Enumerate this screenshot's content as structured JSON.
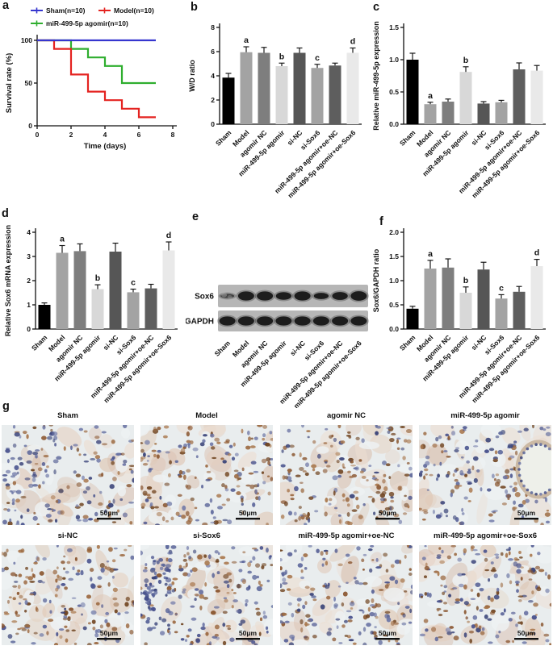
{
  "panel_labels": {
    "a": "a",
    "b": "b",
    "c": "c",
    "d": "d",
    "e": "e",
    "f": "f",
    "g": "g"
  },
  "categories": [
    "Sham",
    "Model",
    "agomir NC",
    "miR-499-5p agomir",
    "si-NC",
    "si-Sox6",
    "miR-499-5p agomir+oe-NC",
    "miR-499-5p agomir+oe-Sox6"
  ],
  "bar_colors": [
    "#000000",
    "#a3a3a3",
    "#7e7e7e",
    "#d8d8d8",
    "#565656",
    "#a3a3a3",
    "#5e5e5e",
    "#e9e9e9"
  ],
  "chart_data": [
    {
      "panel": "a",
      "type": "line",
      "subtype": "survival-step",
      "xlabel": "Time (days)",
      "ylabel": "Survival rate (%)",
      "xlim": [
        0,
        8
      ],
      "ylim": [
        0,
        100
      ],
      "xticks": [
        "0",
        "2",
        "4",
        "6",
        "8"
      ],
      "yticks": [
        "0",
        "50",
        "100"
      ],
      "legend_position": "top",
      "series": [
        {
          "name": "Sham(n=10)",
          "color": "#3636cf",
          "steps": [
            [
              0,
              100
            ],
            [
              7,
              100
            ]
          ]
        },
        {
          "name": "Model(n=10)",
          "color": "#e42320",
          "steps": [
            [
              0,
              100
            ],
            [
              1,
              100
            ],
            [
              1,
              90
            ],
            [
              2,
              90
            ],
            [
              2,
              60
            ],
            [
              3,
              60
            ],
            [
              3,
              40
            ],
            [
              4,
              40
            ],
            [
              4,
              30
            ],
            [
              5,
              30
            ],
            [
              5,
              20
            ],
            [
              6,
              20
            ],
            [
              6,
              10
            ],
            [
              7,
              10
            ]
          ]
        },
        {
          "name": "miR-499-5p agomir(n=10)",
          "color": "#2fae2f",
          "steps": [
            [
              0,
              100
            ],
            [
              2,
              100
            ],
            [
              2,
              90
            ],
            [
              3,
              90
            ],
            [
              3,
              80
            ],
            [
              4,
              80
            ],
            [
              4,
              70
            ],
            [
              5,
              70
            ],
            [
              5,
              50
            ],
            [
              7,
              50
            ]
          ]
        }
      ]
    },
    {
      "panel": "b",
      "type": "bar",
      "ylabel": "W/D ratio",
      "ylim": [
        0,
        8
      ],
      "yticks": [
        0,
        2,
        4,
        6,
        8
      ],
      "ytick_labels": [
        "0",
        "2",
        "4",
        "6",
        "8"
      ],
      "values": [
        3.85,
        5.95,
        5.9,
        4.8,
        5.9,
        4.65,
        4.85,
        5.9
      ],
      "errors": [
        0.35,
        0.45,
        0.45,
        0.25,
        0.4,
        0.3,
        0.2,
        0.4
      ],
      "letters": [
        "",
        "a",
        "",
        "b",
        "",
        "c",
        "",
        "d"
      ]
    },
    {
      "panel": "c",
      "type": "bar",
      "ylabel": "Relative miR-499-5p expression",
      "ylim": [
        0,
        1.5
      ],
      "yticks": [
        0,
        0.5,
        1,
        1.5
      ],
      "ytick_labels": [
        "0.0",
        "0.5",
        "1.0",
        "1.5"
      ],
      "values": [
        1.0,
        0.31,
        0.35,
        0.81,
        0.32,
        0.34,
        0.85,
        0.83
      ],
      "errors": [
        0.1,
        0.03,
        0.04,
        0.08,
        0.03,
        0.03,
        0.1,
        0.08
      ],
      "letters": [
        "",
        "a",
        "",
        "b",
        "",
        "",
        "",
        ""
      ]
    },
    {
      "panel": "d",
      "type": "bar",
      "ylabel": "Relative Sox6 mRNA expression",
      "ylim": [
        0,
        4
      ],
      "yticks": [
        0,
        1,
        2,
        3,
        4
      ],
      "ytick_labels": [
        "0",
        "1",
        "2",
        "3",
        "4"
      ],
      "values": [
        1.0,
        3.15,
        3.22,
        1.65,
        3.2,
        1.52,
        1.68,
        3.25
      ],
      "errors": [
        0.08,
        0.3,
        0.3,
        0.18,
        0.35,
        0.13,
        0.17,
        0.35
      ],
      "letters": [
        "",
        "a",
        "",
        "b",
        "",
        "c",
        "",
        "d"
      ]
    },
    {
      "panel": "f",
      "type": "bar",
      "ylabel": "Sox6/GAPDH ratio",
      "ylim": [
        0,
        2
      ],
      "yticks": [
        0,
        0.5,
        1,
        1.5,
        2
      ],
      "ytick_labels": [
        "0.0",
        "0.5",
        "1.0",
        "1.5",
        "2.0"
      ],
      "values": [
        0.42,
        1.25,
        1.27,
        0.75,
        1.23,
        0.63,
        0.77,
        1.3
      ],
      "errors": [
        0.05,
        0.17,
        0.18,
        0.12,
        0.15,
        0.08,
        0.11,
        0.14
      ],
      "letters": [
        "",
        "a",
        "",
        "b",
        "",
        "c",
        "",
        "d"
      ]
    }
  ],
  "panel_e": {
    "blots": [
      {
        "name": "Sox6",
        "intensities": [
          0.45,
          1,
          1,
          0.85,
          1,
          0.7,
          0.88,
          1.05
        ]
      },
      {
        "name": "GAPDH",
        "intensities": [
          1,
          1,
          1,
          1,
          1,
          1,
          1,
          1
        ]
      }
    ]
  },
  "panel_g": {
    "scale_label": "50μm",
    "images": [
      {
        "label": "Sham",
        "stain": "weak"
      },
      {
        "label": "Model",
        "stain": "strong"
      },
      {
        "label": "agomir NC",
        "stain": "strong"
      },
      {
        "label": "miR-499-5p agomir",
        "stain": "weak",
        "feature": "bronchiole"
      },
      {
        "label": "si-NC",
        "stain": "strong"
      },
      {
        "label": "si-Sox6",
        "stain": "weak",
        "feature": "blue-dense-region"
      },
      {
        "label": "miR-499-5p agomir+oe-NC",
        "stain": "weak"
      },
      {
        "label": "miR-499-5p agomir+oe-Sox6",
        "stain": "moderate"
      }
    ]
  }
}
